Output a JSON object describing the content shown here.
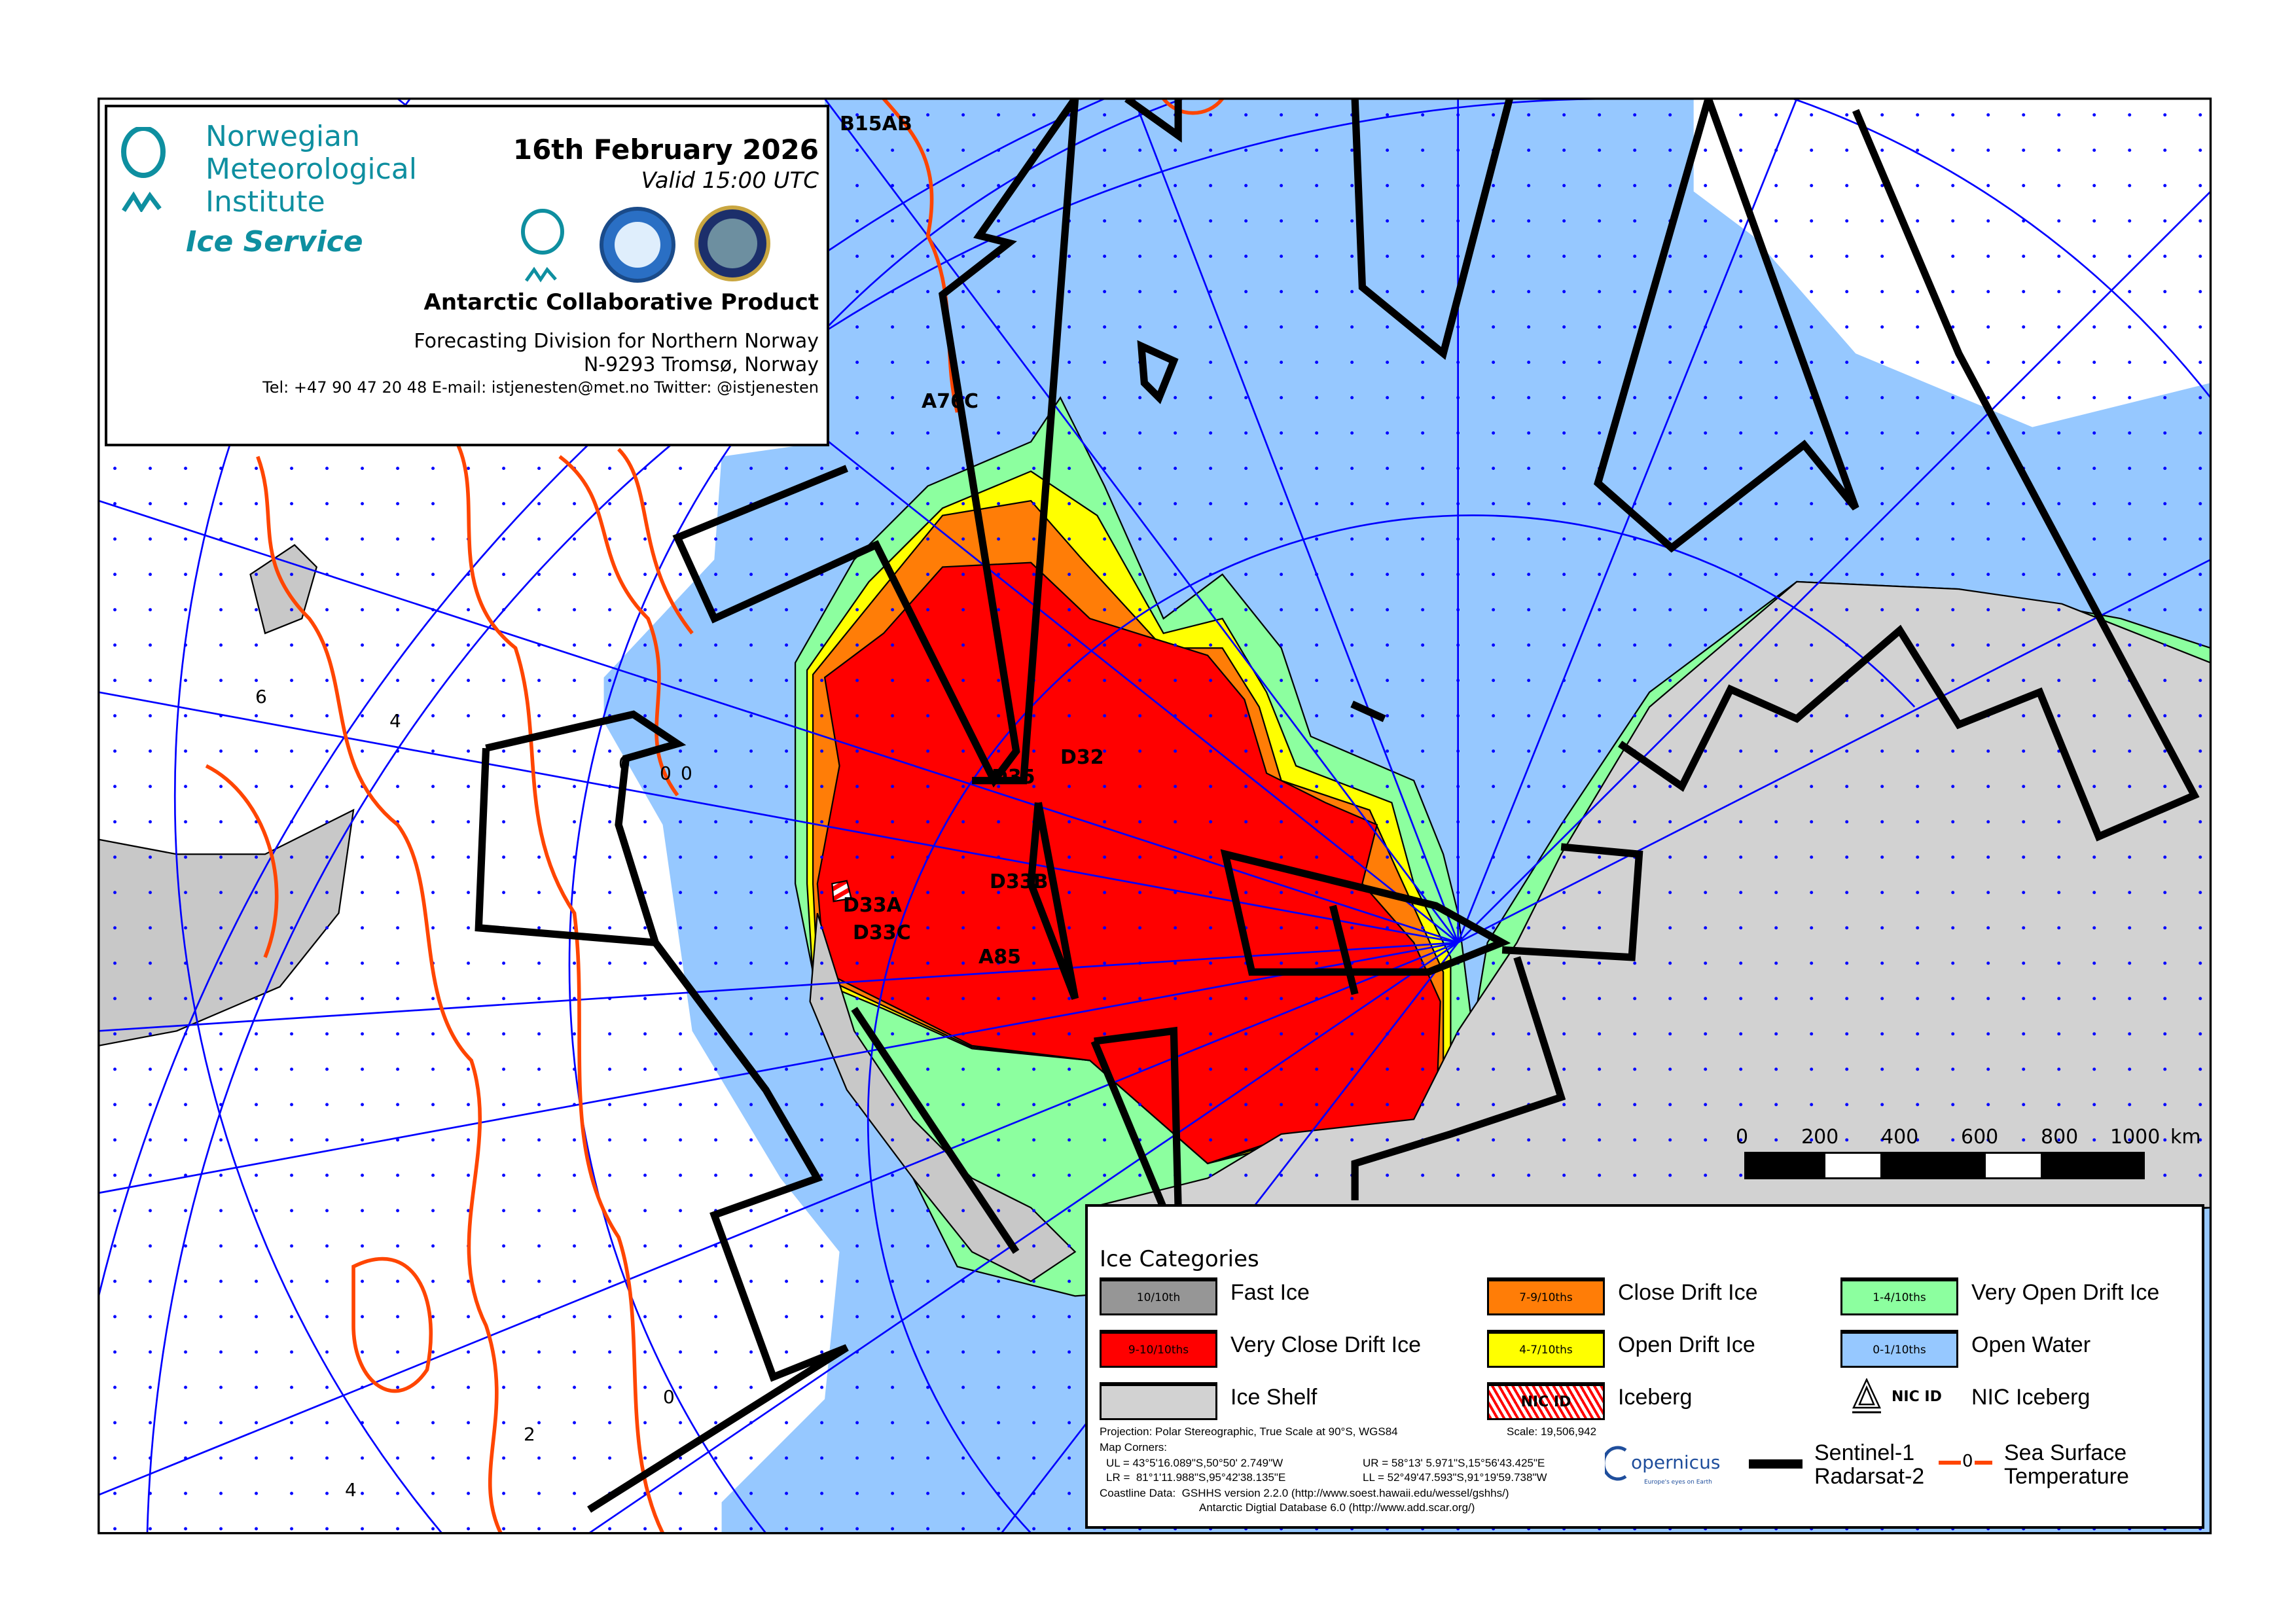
{
  "header": {
    "org_lines": [
      "Norwegian",
      "Meteorological",
      "Institute"
    ],
    "service": "Ice Service",
    "date": "16th February 2026",
    "valid": "Valid 15:00 UTC",
    "product": "Antarctic Collaborative Product",
    "division": "Forecasting Division for Northern Norway",
    "address": "N-9293 Tromsø, Norway",
    "contact": "Tel: +47 90 47 20 48   E-mail: istjenesten@met.no   Twitter: @istjenesten",
    "logos": [
      "met-norway-logo",
      "aari-logo",
      "national-ice-center-logo"
    ]
  },
  "colors": {
    "fast_ice": "#969696",
    "very_close": "#ff0000",
    "ice_shelf": "#d2d2d2",
    "close": "#ff7d07",
    "open": "#ffff00",
    "very_open": "#8cff9f",
    "open_water": "#96c8ff",
    "graticule": "#0000ff",
    "sst": "#ff4500",
    "sar": "#000000"
  },
  "map": {
    "icebergs": [
      "B15AB",
      "A76C",
      "D35",
      "D32",
      "D33B",
      "D33A",
      "D33C",
      "A85"
    ],
    "sst_labels": [
      "0",
      "0",
      "0",
      "6",
      "4",
      "2",
      "4",
      "0"
    ],
    "scale_bar": {
      "ticks": [
        "0",
        "200",
        "400",
        "600",
        "800",
        "1000"
      ],
      "unit": "km"
    }
  },
  "legend": {
    "title": "Ice Categories",
    "items": [
      {
        "code": "10/10th",
        "label": "Fast Ice"
      },
      {
        "code": "9-10/10ths",
        "label": "Very Close Drift Ice"
      },
      {
        "code": "",
        "label": "Ice Shelf"
      },
      {
        "code": "7-9/10ths",
        "label": "Close Drift Ice"
      },
      {
        "code": "4-7/10ths",
        "label": "Open Drift Ice"
      },
      {
        "code": "NIC ID",
        "label": "Iceberg"
      },
      {
        "code": "1-4/10ths",
        "label": "Very Open Drift Ice"
      },
      {
        "code": "0-1/10ths",
        "label": "Open Water"
      },
      {
        "code": "NIC ID",
        "label": "NIC Iceberg"
      }
    ],
    "projection": "Projection: Polar Stereographic, True Scale at 90°S, WGS84",
    "scale": "Scale: 19,506,942",
    "corners_title": "Map Corners:",
    "ul": "UL = 43°5'16.089\"S,50°50' 2.749\"W",
    "ur": "UR = 58°13' 5.971\"S,15°56'43.425\"E",
    "lr": "LR =  81°1'11.988\"S,95°42'38.135\"E",
    "lowleft": "LL = 52°49'47.593\"S,91°19'59.738\"W",
    "coast1": "Coastline Data:  GSHHS version 2.2.0 (http://www.soest.hawaii.edu/wessel/gshhs/)",
    "coast2": "Antarctic Digtial Database 6.0 (http://www.add.scar.org/)",
    "copernicus": "opernicus",
    "copernicus_tag": "Europe's eyes on Earth",
    "sar_lines": [
      "Sentinel-1",
      "Radarsat-2"
    ],
    "sst_marker": "0",
    "sst_lines": [
      "Sea Surface",
      "Temperature"
    ]
  }
}
